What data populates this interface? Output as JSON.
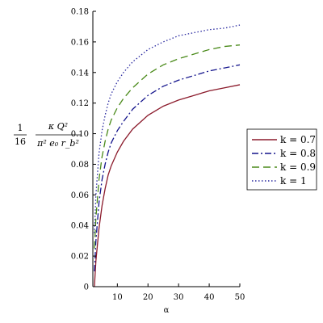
{
  "chart_data": {
    "type": "line",
    "xlabel": "α",
    "ylabel": {
      "coefficient_numerator": "1",
      "coefficient_denominator": "16",
      "numerator": "κ Q²",
      "denominator": "π² e₀ r_b²"
    },
    "xlim": [
      2,
      50
    ],
    "ylim": [
      0,
      0.18
    ],
    "xticks": [
      10,
      20,
      30,
      40,
      50
    ],
    "xtick_labels": [
      "10",
      "20",
      "30",
      "40",
      "50"
    ],
    "yticks": [
      0,
      0.02,
      0.04,
      0.06,
      0.08,
      0.1,
      0.12,
      0.14,
      0.16,
      0.18
    ],
    "ytick_labels": [
      "0",
      "0.02",
      "0.04",
      "0.06",
      "0.08",
      "0.10",
      "0.12",
      "0.14",
      "0.16",
      "0.18"
    ],
    "grid": false,
    "legend_position": "right",
    "x": [
      2.5,
      3,
      4,
      5,
      6,
      7,
      8,
      10,
      12,
      15,
      20,
      25,
      30,
      35,
      40,
      45,
      50
    ],
    "series": [
      {
        "name": "k = 0.7",
        "color": "#8b1a2b",
        "style": "solid",
        "values": [
          0.0,
          0.017,
          0.038,
          0.053,
          0.064,
          0.073,
          0.079,
          0.088,
          0.095,
          0.103,
          0.112,
          0.118,
          0.122,
          0.125,
          0.128,
          0.13,
          0.132
        ]
      },
      {
        "name": "k = 0.8",
        "color": "#14148c",
        "style": "dashdot",
        "values": [
          0.01,
          0.03,
          0.055,
          0.07,
          0.08,
          0.088,
          0.094,
          0.102,
          0.108,
          0.116,
          0.125,
          0.131,
          0.135,
          0.138,
          0.141,
          0.143,
          0.145
        ]
      },
      {
        "name": "k = 0.9",
        "color": "#4a8a1a",
        "style": "dashed",
        "values": [
          0.025,
          0.045,
          0.07,
          0.085,
          0.095,
          0.103,
          0.109,
          0.117,
          0.123,
          0.13,
          0.139,
          0.145,
          0.149,
          0.152,
          0.155,
          0.157,
          0.158
        ]
      },
      {
        "name": "k = 1",
        "color": "#2a2aa0",
        "style": "dotted",
        "values": [
          0.035,
          0.06,
          0.087,
          0.102,
          0.112,
          0.12,
          0.126,
          0.134,
          0.14,
          0.147,
          0.155,
          0.16,
          0.164,
          0.166,
          0.168,
          0.169,
          0.171
        ]
      }
    ]
  }
}
